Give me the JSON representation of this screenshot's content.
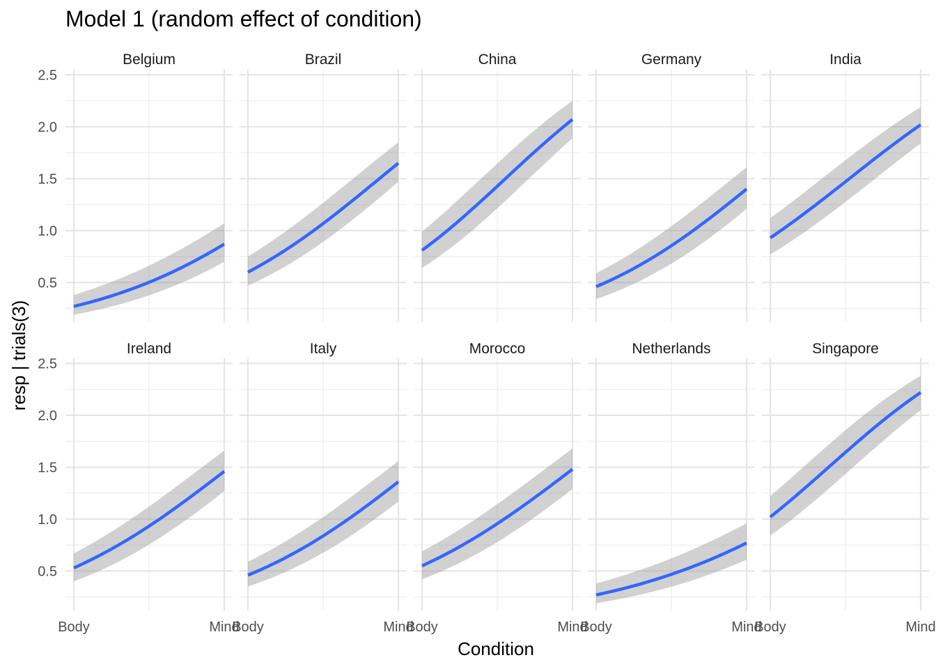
{
  "chart_data": {
    "type": "line",
    "title": "Model 1 (random effect of condition)",
    "xlabel": "Condition",
    "ylabel": "resp | trials(3)",
    "x_categories": [
      "Body",
      "Mind"
    ],
    "y_ticks": [
      0.5,
      1.0,
      1.5,
      2.0,
      2.5
    ],
    "y_tick_labels": [
      "0.5",
      "1.0",
      "1.5",
      "2.0",
      "2.5"
    ],
    "ylim": [
      0.12,
      2.55
    ],
    "grid": true,
    "line_color": "#3366ff",
    "ribbon_color": "#999999",
    "panels": [
      {
        "name": "Belgium",
        "body": 0.27,
        "mind": 0.87,
        "body_lo": 0.19,
        "body_hi": 0.38,
        "mind_lo": 0.7,
        "mind_hi": 1.07
      },
      {
        "name": "Brazil",
        "body": 0.6,
        "mind": 1.65,
        "body_lo": 0.47,
        "body_hi": 0.75,
        "mind_lo": 1.47,
        "mind_hi": 1.85
      },
      {
        "name": "China",
        "body": 0.81,
        "mind": 2.07,
        "body_lo": 0.64,
        "body_hi": 0.99,
        "mind_lo": 1.89,
        "mind_hi": 2.25
      },
      {
        "name": "Germany",
        "body": 0.46,
        "mind": 1.4,
        "body_lo": 0.34,
        "body_hi": 0.59,
        "mind_lo": 1.21,
        "mind_hi": 1.61
      },
      {
        "name": "India",
        "body": 0.93,
        "mind": 2.02,
        "body_lo": 0.77,
        "body_hi": 1.12,
        "mind_lo": 1.84,
        "mind_hi": 2.19
      },
      {
        "name": "Ireland",
        "body": 0.53,
        "mind": 1.46,
        "body_lo": 0.4,
        "body_hi": 0.67,
        "mind_lo": 1.27,
        "mind_hi": 1.66
      },
      {
        "name": "Italy",
        "body": 0.46,
        "mind": 1.36,
        "body_lo": 0.35,
        "body_hi": 0.59,
        "mind_lo": 1.17,
        "mind_hi": 1.56
      },
      {
        "name": "Morocco",
        "body": 0.55,
        "mind": 1.48,
        "body_lo": 0.42,
        "body_hi": 0.69,
        "mind_lo": 1.29,
        "mind_hi": 1.68
      },
      {
        "name": "Netherlands",
        "body": 0.27,
        "mind": 0.77,
        "body_lo": 0.19,
        "body_hi": 0.38,
        "mind_lo": 0.61,
        "mind_hi": 0.96
      },
      {
        "name": "Singapore",
        "body": 1.02,
        "mind": 2.22,
        "body_lo": 0.84,
        "body_hi": 1.22,
        "mind_lo": 2.05,
        "mind_hi": 2.38
      }
    ]
  }
}
